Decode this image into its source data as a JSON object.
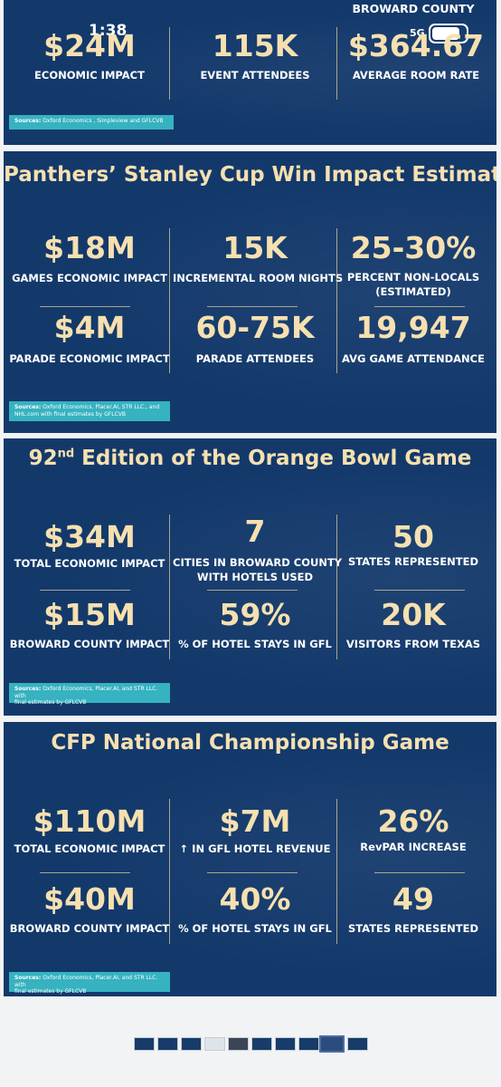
{
  "status_bar": {
    "time": "1:38",
    "network": "5G",
    "battery": ""
  },
  "slide1": {
    "region": "BROWARD COUNTY",
    "stats": [
      {
        "value": "$24M",
        "label": "ECONOMIC IMPACT"
      },
      {
        "value": "115K",
        "label": "EVENT ATTENDEES"
      },
      {
        "value": "$364.67",
        "label": "AVERAGE ROOM RATE"
      }
    ],
    "sources_bold": "Sources:",
    "sources_text": "Oxford Economics , Simpleview and GFLCVB"
  },
  "slide2": {
    "title": "Panthers’ Stanley Cup Win Impact Estimates",
    "stats": [
      {
        "value": "$18M",
        "label": "GAMES ECONOMIC IMPACT"
      },
      {
        "value": "15K",
        "label": "INCREMENTAL ROOM NIGHTS"
      },
      {
        "value": "25-30%",
        "label": "PERCENT NON-LOCALS",
        "label2": "(ESTIMATED)"
      },
      {
        "value": "$4M",
        "label": "PARADE ECONOMIC IMPACT"
      },
      {
        "value": "60-75K",
        "label": "PARADE ATTENDEES"
      },
      {
        "value": "19,947",
        "label": "AVG GAME ATTENDANCE"
      }
    ],
    "sources_bold": "Sources:",
    "sources_text": "Oxford Economics, Placer.AI, STR LLC., and",
    "sources_text2": "NHL.com with final estimates by GFLCVB"
  },
  "slide3": {
    "title_prefix": "92",
    "title_sup": "nd",
    "title_rest": " Edition of the Orange Bowl Game",
    "stats": [
      {
        "value": "$34M",
        "label": "TOTAL ECONOMIC IMPACT"
      },
      {
        "value": "7",
        "label": "CITIES IN BROWARD COUNTY",
        "label2": "WITH HOTELS USED"
      },
      {
        "value": "50",
        "label": "STATES REPRESENTED"
      },
      {
        "value": "$15M",
        "label": "BROWARD COUNTY IMPACT"
      },
      {
        "value": "59%",
        "label": "% OF HOTEL STAYS IN GFL"
      },
      {
        "value": "20K",
        "label": "VISITORS FROM TEXAS"
      }
    ],
    "sources_bold": "Sources:",
    "sources_text": "Oxford Economics, Placer.AI, and STR LLC. with",
    "sources_text2": "final estimates by GFLCVB"
  },
  "slide4": {
    "title": "CFP National Championship Game",
    "stats": [
      {
        "value": "$110M",
        "label": "TOTAL ECONOMIC IMPACT"
      },
      {
        "value": "$7M",
        "label": "↑ IN GFL HOTEL REVENUE"
      },
      {
        "value": "26%",
        "label": "RevPAR INCREASE"
      },
      {
        "value": "$40M",
        "label": "BROWARD COUNTY IMPACT"
      },
      {
        "value": "40%",
        "label": "% OF HOTEL STAYS IN GFL"
      },
      {
        "value": "49",
        "label": "STATES REPRESENTED"
      }
    ],
    "sources_bold": "Sources:",
    "sources_text": "Oxford Economics, Placer.AI, and STR LLC. with",
    "sources_text2": "final estimates by GFLCVB"
  },
  "thumbnail_strip": {
    "count": 10,
    "active_index": 8
  }
}
